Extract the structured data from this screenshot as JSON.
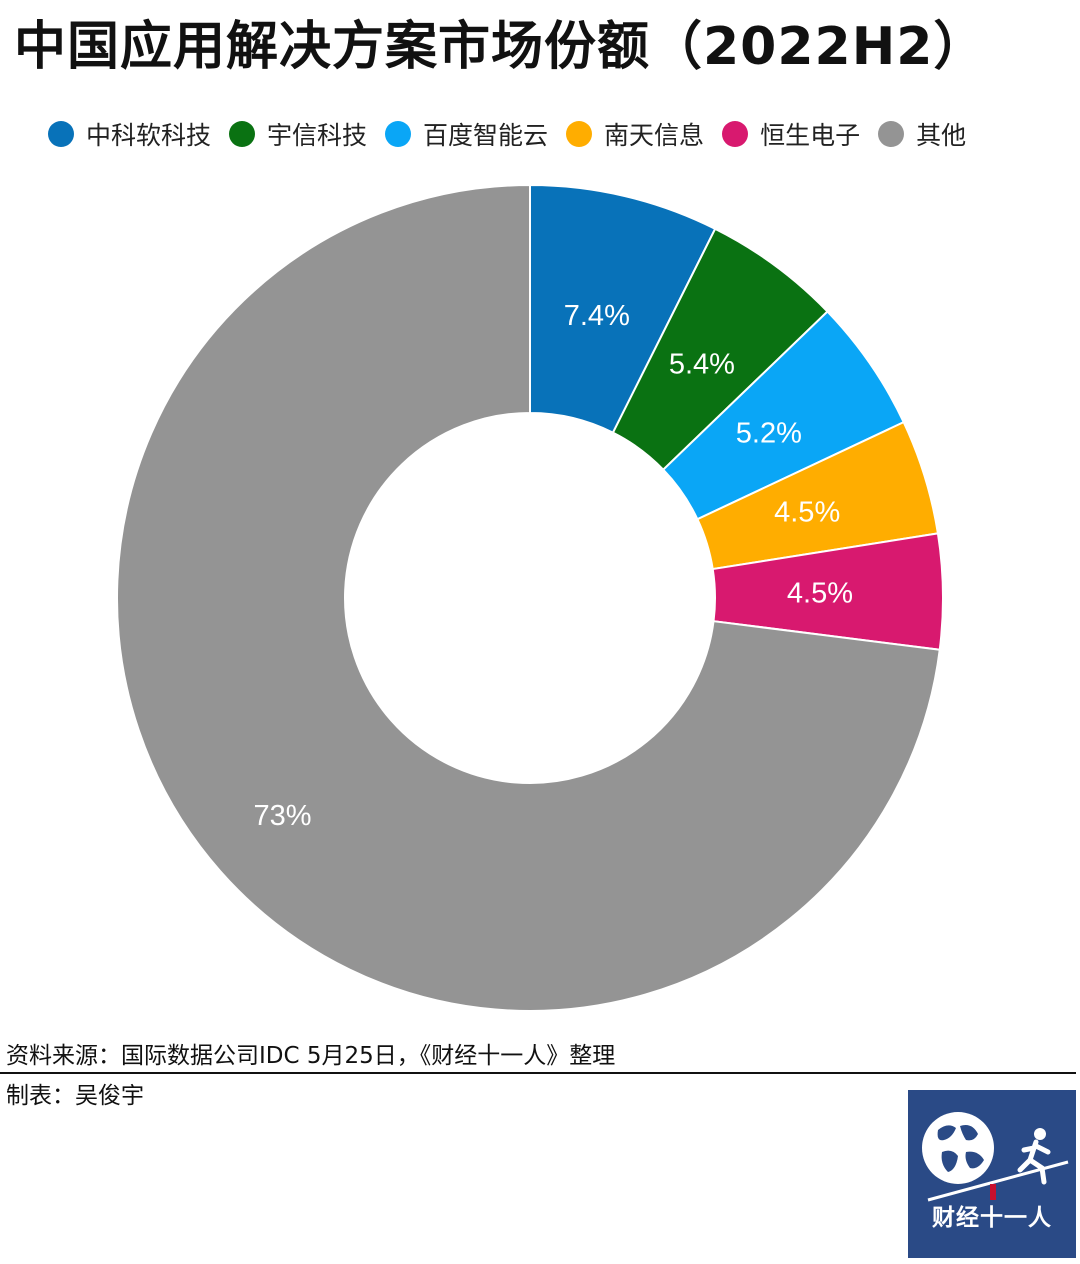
{
  "chart_data": {
    "type": "pie",
    "title": "中国应用解决方案市场份额（2022H2）",
    "donut": true,
    "legend_position": "top",
    "categories": [
      "中科软科技",
      "宇信科技",
      "百度智能云",
      "南天信息",
      "恒生电子",
      "其他"
    ],
    "values": [
      7.4,
      5.4,
      5.2,
      4.5,
      4.5,
      73
    ],
    "labels": [
      "7.4%",
      "5.4%",
      "5.2%",
      "4.5%",
      "4.5%",
      "73%"
    ],
    "colors": [
      "#0872b9",
      "#0a7212",
      "#0aa6f6",
      "#ffad00",
      "#d8196f",
      "#949494"
    ],
    "unit": "%"
  },
  "footer": {
    "source": "资料来源：国际数据公司IDC 5月25日，《财经十一人》整理",
    "author": "制表：吴俊宇"
  },
  "logo": {
    "text": "财经十一人",
    "icon": "globe-runner-icon"
  }
}
